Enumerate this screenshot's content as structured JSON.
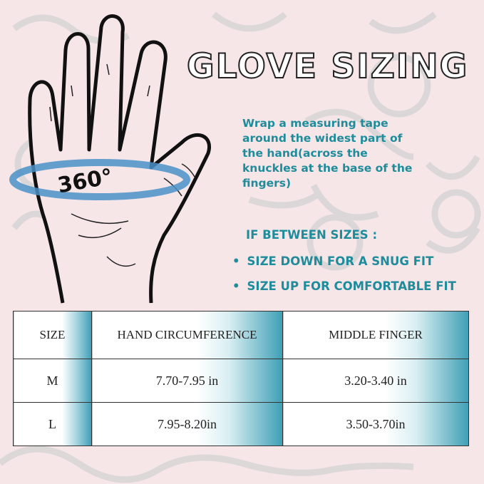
{
  "title": "GLOVE SIZING",
  "hand_label": "360°",
  "instruction": "Wrap a measuring tape around the widest part of the hand(across the knuckles at the base of the fingers)",
  "between_sizes": {
    "heading": "IF BETWEEN SIZES :",
    "tips": [
      "SIZE DOWN FOR A SNUG FIT",
      "SIZE UP FOR COMFORTABLE FIT"
    ]
  },
  "table": {
    "headers": [
      "SIZE",
      "HAND CIRCUMFERENCE",
      "MIDDLE FINGER"
    ],
    "rows": [
      [
        "M",
        "7.70-7.95 in",
        "3.20-3.40 in"
      ],
      [
        "L",
        "7.95-8.20in",
        "3.50-3.70in"
      ]
    ]
  },
  "colors": {
    "accent": "#1f8c9b",
    "table_gradient": "#3f9fb6",
    "background": "#f6e6e8",
    "tape": "#4a90c8"
  }
}
